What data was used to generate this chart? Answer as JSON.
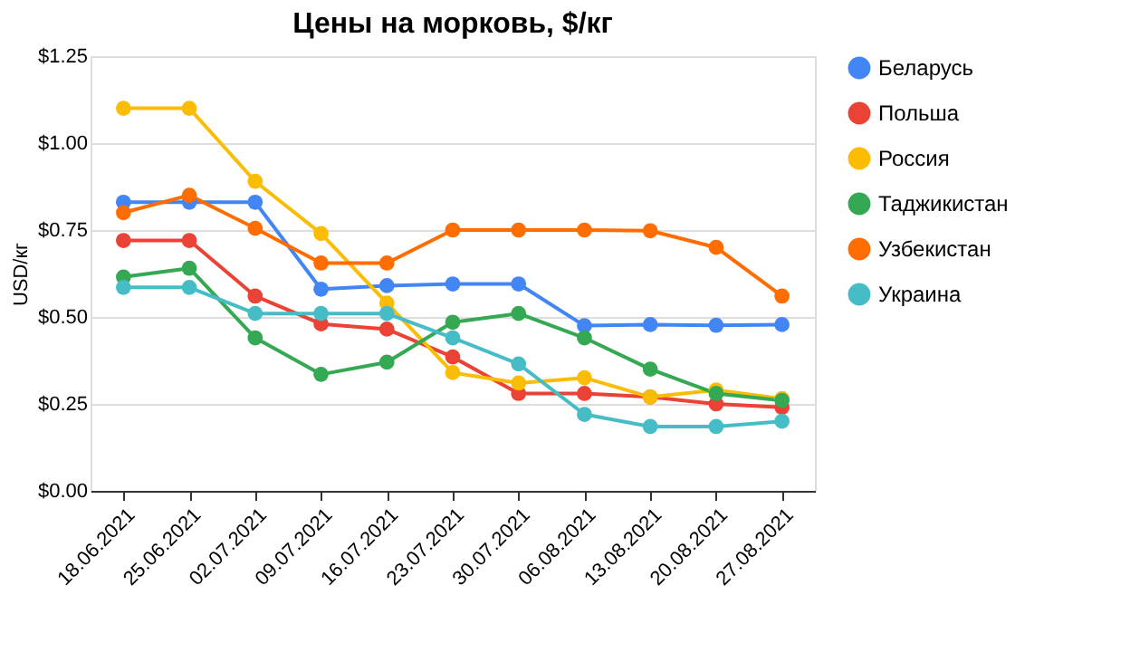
{
  "chart_data": {
    "type": "line",
    "title": "Цены на морковь, $/кг",
    "ylabel": "USD/кг",
    "categories": [
      "18.06.2021",
      "25.06.2021",
      "02.07.2021",
      "09.07.2021",
      "16.07.2021",
      "23.07.2021",
      "30.07.2021",
      "06.08.2021",
      "13.08.2021",
      "20.08.2021",
      "27.08.2021"
    ],
    "series": [
      {
        "name": "Беларусь",
        "color": "#4285f4",
        "values": [
          0.83,
          0.83,
          0.83,
          0.58,
          0.59,
          0.595,
          0.595,
          0.475,
          0.478,
          0.476,
          0.478
        ]
      },
      {
        "name": "Польша",
        "color": "#ea4335",
        "values": [
          0.72,
          0.72,
          0.56,
          0.48,
          0.465,
          0.385,
          0.28,
          0.28,
          0.27,
          0.25,
          0.24
        ]
      },
      {
        "name": "Россия",
        "color": "#fbbc04",
        "values": [
          1.1,
          1.1,
          0.89,
          0.74,
          0.54,
          0.34,
          0.31,
          0.325,
          0.27,
          0.29,
          0.265
        ]
      },
      {
        "name": "Таджикистан",
        "color": "#34a853",
        "values": [
          0.615,
          0.64,
          0.44,
          0.335,
          0.37,
          0.485,
          0.51,
          0.44,
          0.35,
          0.28,
          0.26
        ]
      },
      {
        "name": "Узбекистан",
        "color": "#ff6d01",
        "values": [
          0.8,
          0.85,
          0.755,
          0.655,
          0.655,
          0.75,
          0.75,
          0.75,
          0.748,
          0.7,
          0.56
        ]
      },
      {
        "name": "Украина",
        "color": "#46bdc6",
        "values": [
          0.585,
          0.585,
          0.51,
          0.51,
          0.51,
          0.44,
          0.365,
          0.22,
          0.185,
          0.185,
          0.2
        ]
      }
    ],
    "ylim": [
      0,
      1.25
    ],
    "yticks": [
      {
        "value": 0,
        "label": "$0.00"
      },
      {
        "value": 0.25,
        "label": "$0.25"
      },
      {
        "value": 0.5,
        "label": "$0.50"
      },
      {
        "value": 0.75,
        "label": "$0.75"
      },
      {
        "value": 1,
        "label": "$1.00"
      },
      {
        "value": 1.25,
        "label": "$1.25"
      }
    ],
    "grid": "y",
    "legend": "right",
    "marker": "circle",
    "line_style": "solid"
  }
}
